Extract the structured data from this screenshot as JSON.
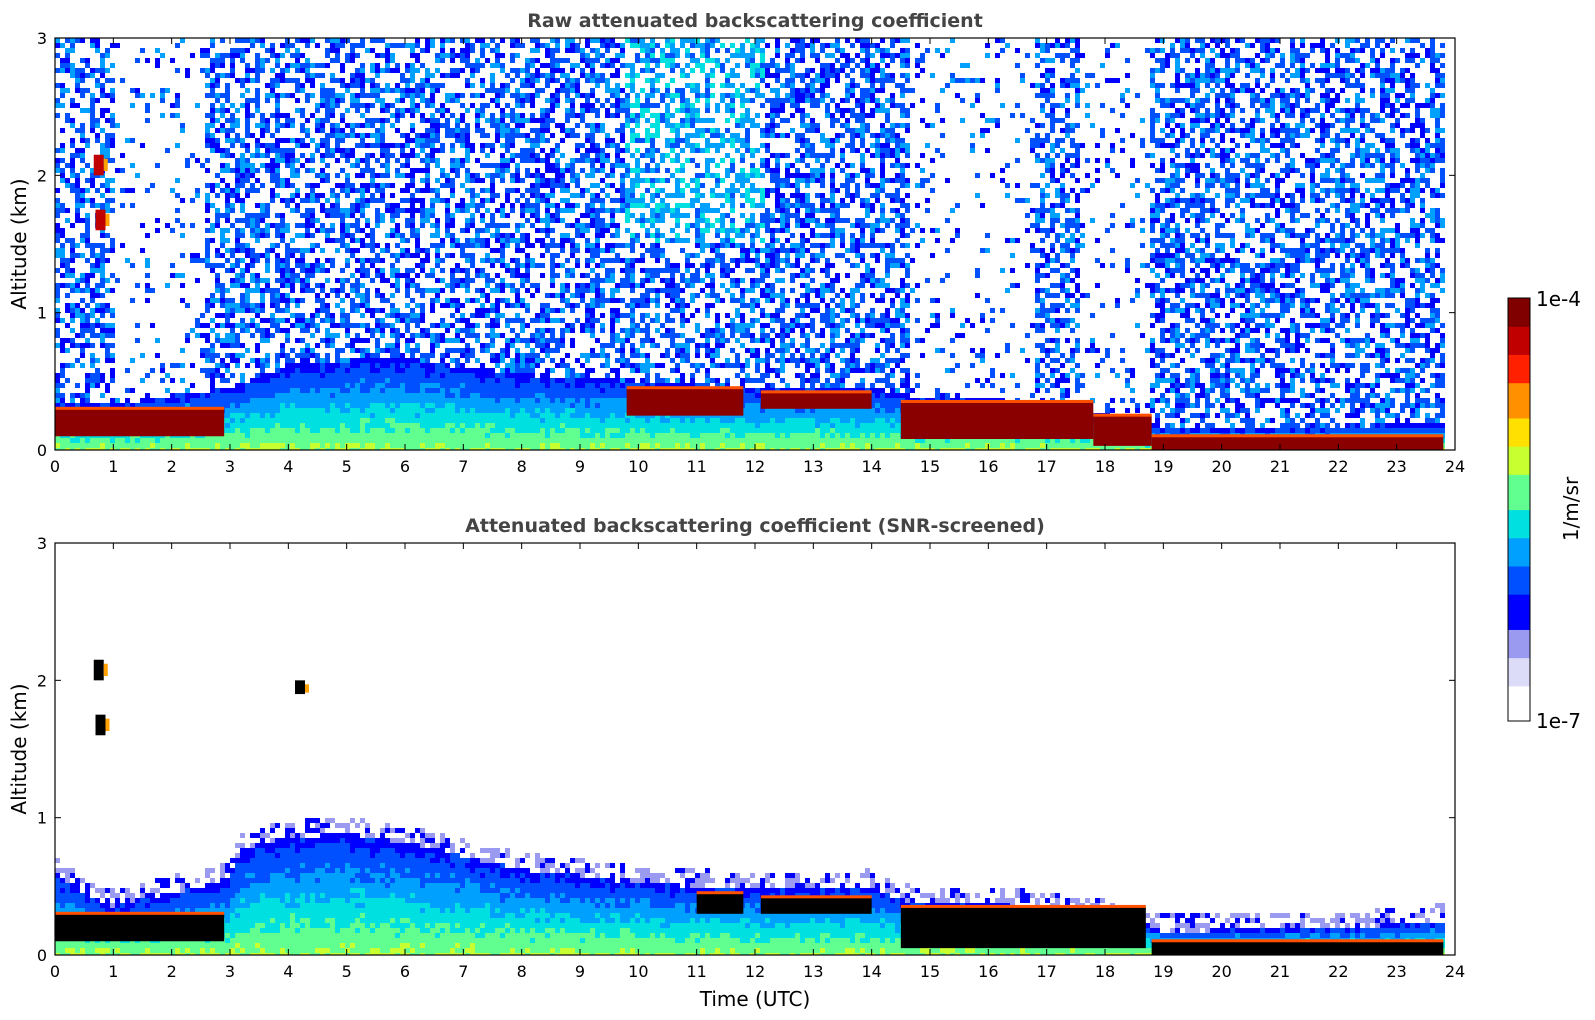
{
  "colors": {
    "frame": "#000000",
    "title": "#444444",
    "background": "#ffffff",
    "colormap": [
      "#ffffff",
      "#dcdcf8",
      "#9a9af0",
      "#0000ff",
      "#0050ff",
      "#00a0ff",
      "#00e0e0",
      "#60ff90",
      "#c8ff30",
      "#ffe000",
      "#ff9000",
      "#ff2000",
      "#c00000",
      "#800000"
    ],
    "screened_low": "#000000"
  },
  "chart_data": [
    {
      "type": "heatmap",
      "title": "Raw attenuated backscattering coefficient",
      "xlabel": "",
      "ylabel": "Altitude (km)",
      "xlim": [
        0,
        24
      ],
      "ylim": [
        0,
        3
      ],
      "xticks": [
        "0",
        "1",
        "2",
        "3",
        "4",
        "5",
        "6",
        "7",
        "8",
        "9",
        "10",
        "11",
        "12",
        "13",
        "14",
        "15",
        "16",
        "17",
        "18",
        "19",
        "20",
        "21",
        "22",
        "23",
        "24"
      ],
      "yticks": [
        "0",
        "1",
        "2",
        "3"
      ],
      "data_end_hour": 23.8,
      "boundary_layer_top_km": [
        [
          0,
          0.35
        ],
        [
          1,
          0.33
        ],
        [
          2,
          0.4
        ],
        [
          3,
          0.45
        ],
        [
          4,
          0.62
        ],
        [
          5,
          0.65
        ],
        [
          6,
          0.66
        ],
        [
          7,
          0.6
        ],
        [
          8,
          0.55
        ],
        [
          9,
          0.52
        ],
        [
          10,
          0.5
        ],
        [
          11,
          0.47
        ],
        [
          12,
          0.45
        ],
        [
          13,
          0.44
        ],
        [
          14,
          0.45
        ],
        [
          15,
          0.37
        ],
        [
          16,
          0.38
        ],
        [
          17,
          0.32
        ],
        [
          18,
          0.26
        ],
        [
          19,
          0.16
        ],
        [
          20,
          0.15
        ],
        [
          21,
          0.16
        ],
        [
          22,
          0.17
        ],
        [
          23,
          0.18
        ],
        [
          23.8,
          0.18
        ]
      ],
      "cloud_layers": [
        {
          "hours": [
            0,
            2.9
          ],
          "base_km": 0.1,
          "top_km": 0.3
        },
        {
          "hours": [
            9.8,
            11.8
          ],
          "base_km": 0.25,
          "top_km": 0.45
        },
        {
          "hours": [
            12.1,
            14
          ],
          "base_km": 0.3,
          "top_km": 0.42
        },
        {
          "hours": [
            14.5,
            17.8
          ],
          "base_km": 0.08,
          "top_km": 0.35
        },
        {
          "hours": [
            17.8,
            18.8
          ],
          "base_km": 0.03,
          "top_km": 0.25
        },
        {
          "hours": [
            18.8,
            23.8
          ],
          "base_km": 0.0,
          "top_km": 0.1
        }
      ],
      "elevated_clouds": [
        {
          "hour": 0.75,
          "base_km": 2.0,
          "top_km": 2.15
        },
        {
          "hour": 0.78,
          "base_km": 1.6,
          "top_km": 1.75
        }
      ]
    },
    {
      "type": "heatmap",
      "title": "Attenuated backscattering coefficient (SNR-screened)",
      "xlabel": "Time (UTC)",
      "ylabel": "Altitude (km)",
      "xlim": [
        0,
        24
      ],
      "ylim": [
        0,
        3
      ],
      "xticks": [
        "0",
        "1",
        "2",
        "3",
        "4",
        "5",
        "6",
        "7",
        "8",
        "9",
        "10",
        "11",
        "12",
        "13",
        "14",
        "15",
        "16",
        "17",
        "18",
        "19",
        "20",
        "21",
        "22",
        "23",
        "24"
      ],
      "yticks": [
        "0",
        "1",
        "2",
        "3"
      ],
      "aerosol_top_km": [
        [
          0,
          0.6
        ],
        [
          0.5,
          0.45
        ],
        [
          1,
          0.35
        ],
        [
          2,
          0.45
        ],
        [
          3,
          0.55
        ],
        [
          3.2,
          0.78
        ],
        [
          4,
          0.85
        ],
        [
          5,
          0.88
        ],
        [
          6,
          0.82
        ],
        [
          7,
          0.72
        ],
        [
          8,
          0.62
        ],
        [
          9,
          0.58
        ],
        [
          10,
          0.52
        ],
        [
          11,
          0.5
        ],
        [
          12,
          0.48
        ],
        [
          13,
          0.47
        ],
        [
          14,
          0.5
        ],
        [
          14.5,
          0.4
        ],
        [
          15,
          0.36
        ],
        [
          16,
          0.38
        ],
        [
          17,
          0.33
        ],
        [
          18,
          0.28
        ],
        [
          19,
          0.17
        ],
        [
          20,
          0.18
        ],
        [
          21,
          0.19
        ],
        [
          22,
          0.2
        ],
        [
          23,
          0.22
        ],
        [
          23.8,
          0.25
        ]
      ],
      "cloud_layers": [
        {
          "hours": [
            0,
            2.9
          ],
          "base_km": 0.1,
          "top_km": 0.3
        },
        {
          "hours": [
            11,
            11.8
          ],
          "base_km": 0.3,
          "top_km": 0.45
        },
        {
          "hours": [
            12.1,
            14
          ],
          "base_km": 0.3,
          "top_km": 0.42
        },
        {
          "hours": [
            14.5,
            18.7
          ],
          "base_km": 0.05,
          "top_km": 0.35
        },
        {
          "hours": [
            18.8,
            23.8
          ],
          "base_km": 0.0,
          "top_km": 0.1
        }
      ],
      "elevated_clouds": [
        {
          "hour": 0.75,
          "base_km": 2.0,
          "top_km": 2.15
        },
        {
          "hour": 0.78,
          "base_km": 1.6,
          "top_km": 1.75
        },
        {
          "hour": 4.2,
          "base_km": 1.9,
          "top_km": 2.0
        }
      ]
    }
  ],
  "colorbar": {
    "label": "1/m/sr",
    "max_label": "1e-4",
    "min_label": "1e-7",
    "scale": "log",
    "range": [
      1e-07,
      0.0001
    ]
  }
}
